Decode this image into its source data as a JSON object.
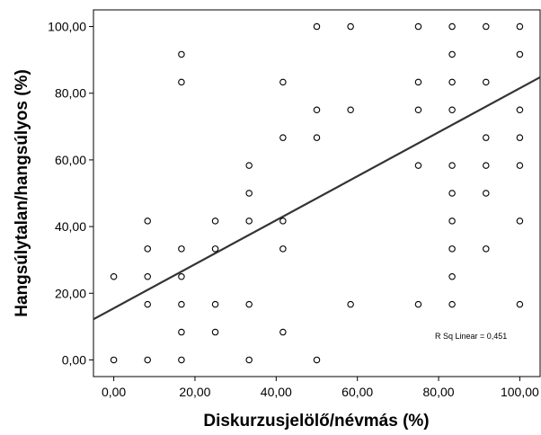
{
  "chart_data": {
    "type": "scatter",
    "xlabel": "Diskurzusjelölő/névmás (%)",
    "ylabel": "Hangsúlytalan/hangsúlyos (%)",
    "xlim": [
      -5,
      105
    ],
    "ylim": [
      -5,
      105
    ],
    "x_ticks": [
      0,
      20,
      40,
      60,
      80,
      100
    ],
    "y_ticks": [
      0,
      20,
      40,
      60,
      80,
      100
    ],
    "x_tick_labels": [
      "0,00",
      "20,00",
      "40,00",
      "60,00",
      "80,00",
      "100,00"
    ],
    "y_tick_labels": [
      "0,00",
      "20,00",
      "40,00",
      "60,00",
      "80,00",
      "100,00"
    ],
    "grid": false,
    "annotation": "R Sq Linear = 0,451",
    "fit_line": {
      "intercept": 15.5,
      "slope": 0.66
    },
    "points": [
      [
        0,
        0
      ],
      [
        0,
        25
      ],
      [
        8.33,
        0
      ],
      [
        8.33,
        16.67
      ],
      [
        8.33,
        25
      ],
      [
        8.33,
        33.33
      ],
      [
        8.33,
        41.67
      ],
      [
        16.67,
        0
      ],
      [
        16.67,
        8.33
      ],
      [
        16.67,
        16.67
      ],
      [
        16.67,
        25
      ],
      [
        16.67,
        33.33
      ],
      [
        16.67,
        83.33
      ],
      [
        16.67,
        91.67
      ],
      [
        25,
        8.33
      ],
      [
        25,
        16.67
      ],
      [
        25,
        33.33
      ],
      [
        25,
        41.67
      ],
      [
        33.33,
        0
      ],
      [
        33.33,
        16.67
      ],
      [
        33.33,
        41.67
      ],
      [
        33.33,
        50
      ],
      [
        33.33,
        58.33
      ],
      [
        41.67,
        8.33
      ],
      [
        41.67,
        33.33
      ],
      [
        41.67,
        41.67
      ],
      [
        41.67,
        66.67
      ],
      [
        41.67,
        83.33
      ],
      [
        50,
        0
      ],
      [
        50,
        66.67
      ],
      [
        50,
        75
      ],
      [
        50,
        100
      ],
      [
        58.33,
        16.67
      ],
      [
        58.33,
        75
      ],
      [
        58.33,
        100
      ],
      [
        75,
        16.67
      ],
      [
        75,
        58.33
      ],
      [
        75,
        75
      ],
      [
        75,
        83.33
      ],
      [
        75,
        100
      ],
      [
        83.33,
        16.67
      ],
      [
        83.33,
        25
      ],
      [
        83.33,
        33.33
      ],
      [
        83.33,
        41.67
      ],
      [
        83.33,
        50
      ],
      [
        83.33,
        58.33
      ],
      [
        83.33,
        75
      ],
      [
        83.33,
        83.33
      ],
      [
        83.33,
        91.67
      ],
      [
        83.33,
        100
      ],
      [
        91.67,
        33.33
      ],
      [
        91.67,
        50
      ],
      [
        91.67,
        58.33
      ],
      [
        91.67,
        66.67
      ],
      [
        91.67,
        83.33
      ],
      [
        91.67,
        100
      ],
      [
        100,
        16.67
      ],
      [
        100,
        41.67
      ],
      [
        100,
        58.33
      ],
      [
        100,
        66.67
      ],
      [
        100,
        75
      ],
      [
        100,
        91.67
      ],
      [
        100,
        100
      ]
    ]
  }
}
